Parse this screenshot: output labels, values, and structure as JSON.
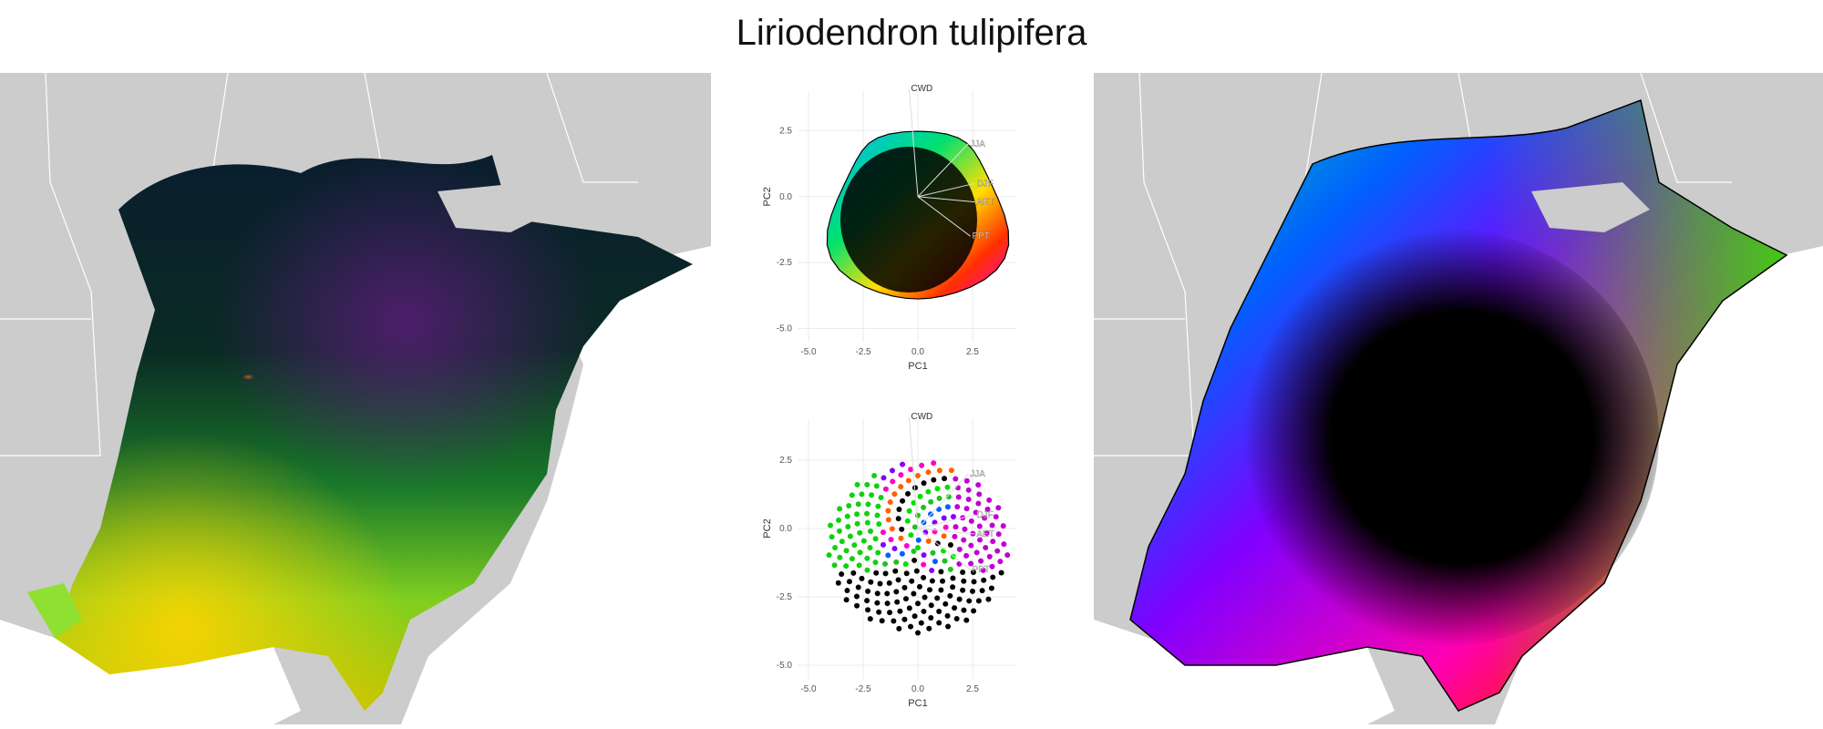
{
  "title": "Liriodendron tulipifera",
  "colors": {
    "land": "#cccccc",
    "border": "#ffffff",
    "range_outline": "#000000"
  },
  "pca": {
    "x_label": "PC1",
    "y_label": "PC2",
    "x_ticks": [
      "-5.0",
      "-2.5",
      "0.0",
      "2.5"
    ],
    "y_ticks": [
      "2.5",
      "0.0",
      "-2.5",
      "-5.0"
    ],
    "x_tick_values": [
      -5.0,
      -2.5,
      0.0,
      2.5
    ],
    "y_tick_values": [
      2.5,
      0.0,
      -2.5,
      -5.0
    ],
    "x_range": [
      -5.5,
      4.5
    ],
    "y_range": [
      -5.5,
      4.0
    ],
    "loadings": [
      {
        "label": "CWD",
        "x": -0.4,
        "y": 4.1
      },
      {
        "label": "JJA",
        "x": 2.3,
        "y": 2.0
      },
      {
        "label": "DJF",
        "x": 2.6,
        "y": 0.5
      },
      {
        "label": "AET",
        "x": 2.6,
        "y": -0.2
      },
      {
        "label": "PPT",
        "x": 2.4,
        "y": -1.5
      }
    ]
  }
}
